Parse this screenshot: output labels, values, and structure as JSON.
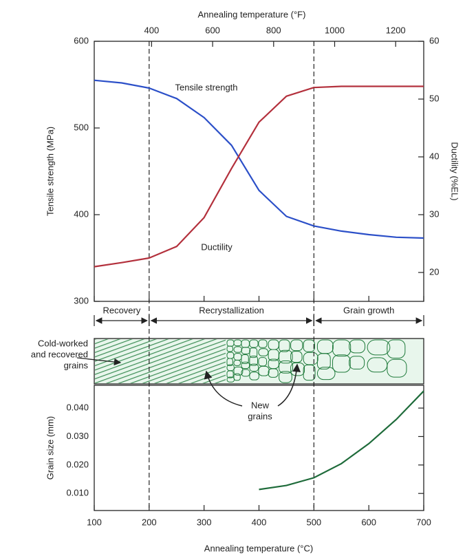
{
  "chart_data": [
    {
      "type": "line",
      "x2label": "Annealing temperature (°F)",
      "x2lim": [
        212,
        1292
      ],
      "x2ticks": [
        400,
        600,
        800,
        1000,
        1200
      ],
      "ylabel": "Tensile strength (MPa)",
      "ylim": [
        300,
        600
      ],
      "yticks": [
        300,
        400,
        500,
        600
      ],
      "y2label": "Ductility (%EL)",
      "y2lim": [
        15,
        60
      ],
      "y2ticks": [
        20,
        30,
        40,
        50,
        60
      ],
      "xlim": [
        100,
        700
      ],
      "x": [
        100,
        150,
        200,
        250,
        300,
        350,
        400,
        450,
        500,
        550,
        600,
        650,
        700
      ],
      "series": [
        {
          "name": "Tensile strength",
          "color": "#2b4fc8",
          "values": [
            555,
            552,
            546,
            534,
            512,
            480,
            428,
            398,
            387,
            381,
            377,
            374,
            373
          ]
        },
        {
          "name": "Ductility",
          "color": "#b3303c",
          "axis": "y2",
          "values": [
            21,
            21.7,
            22.5,
            24.5,
            29.5,
            38,
            46,
            50.5,
            52,
            52.2,
            52.2,
            52.2,
            52.2
          ]
        }
      ],
      "vlines": [
        200,
        500
      ],
      "regions": [
        {
          "label": "Recovery",
          "from": 100,
          "to": 200
        },
        {
          "label": "Recrystallization",
          "from": 200,
          "to": 500
        },
        {
          "label": "Grain growth",
          "from": 500,
          "to": 700
        }
      ]
    },
    {
      "type": "line",
      "xlabel": "Annealing temperature (°C)",
      "xlim": [
        100,
        700
      ],
      "xticks": [
        100,
        200,
        300,
        400,
        500,
        600,
        700
      ],
      "ylabel": "Grain size (mm)",
      "ylim": [
        0.004,
        0.048
      ],
      "yticks": [
        {
          "value": 0.01,
          "label": "0.010"
        },
        {
          "value": 0.02,
          "label": "0.020"
        },
        {
          "value": 0.03,
          "label": "0.030"
        },
        {
          "value": 0.04,
          "label": "0.040"
        }
      ],
      "x": [
        400,
        450,
        500,
        550,
        600,
        650,
        700
      ],
      "color": "#1e6b3a",
      "values": [
        0.0114,
        0.0128,
        0.0155,
        0.0205,
        0.0275,
        0.036,
        0.046
      ]
    }
  ],
  "annotations": {
    "cold_worked": [
      "Cold-worked",
      "and recovered",
      "grains"
    ],
    "new_grains": [
      "New",
      "grains"
    ]
  }
}
